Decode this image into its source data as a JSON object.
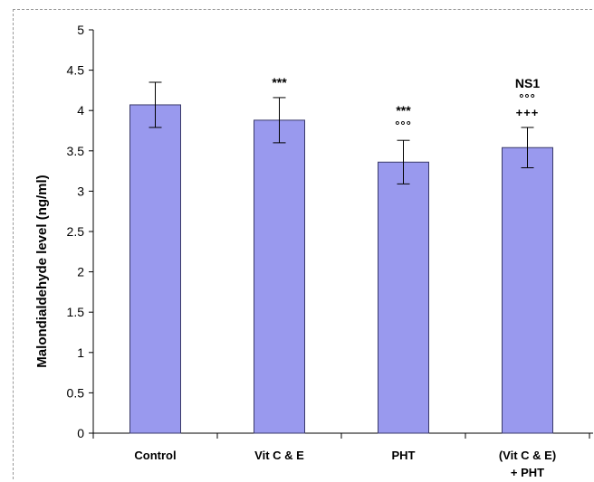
{
  "chart_data": {
    "type": "bar",
    "title": "",
    "xlabel": "",
    "ylabel": "Malondialdehyde level (ng/ml)",
    "ylim": [
      0,
      5
    ],
    "yticks": [
      "0",
      "0.5",
      "1",
      "1.5",
      "2",
      "2.5",
      "3",
      "3.5",
      "4",
      "4.5",
      "5"
    ],
    "categories": [
      [
        "Control"
      ],
      [
        "Vit C & E"
      ],
      [
        "PHT"
      ],
      [
        "(Vit C & E)",
        "+ PHT"
      ]
    ],
    "values": [
      4.07,
      3.88,
      3.36,
      3.54
    ],
    "errors": [
      0.28,
      0.28,
      0.27,
      0.25
    ],
    "annotations": [
      [],
      [
        "***"
      ],
      [
        "***",
        "°°°"
      ],
      [
        "NS1",
        "°°°",
        "+++"
      ]
    ],
    "bar_color": "#9999ee",
    "grid": false
  }
}
